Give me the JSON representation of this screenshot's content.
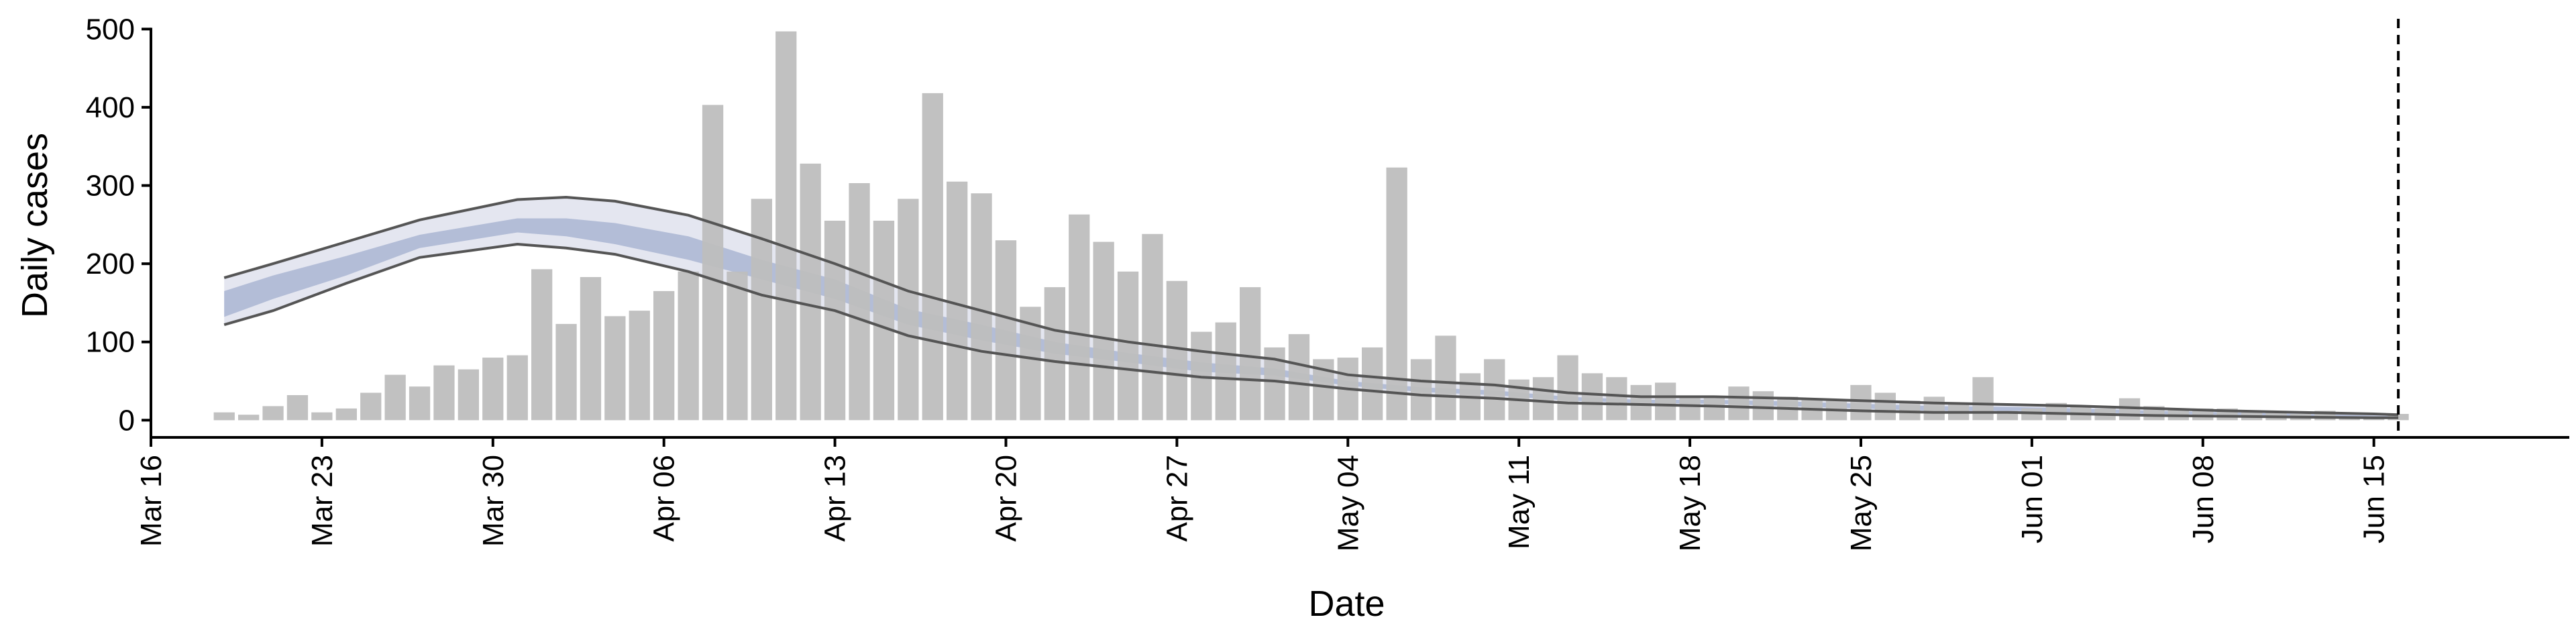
{
  "chart_data": {
    "type": "bar",
    "xlabel": "Date",
    "ylabel": "Daily cases",
    "ylim": [
      -22,
      520
    ],
    "xlim": [
      "2020-03-16",
      "2020-06-23"
    ],
    "y_ticks": [
      0,
      100,
      200,
      300,
      400,
      500
    ],
    "x_ticks": [
      {
        "date": "2020-03-16",
        "label": "Mar 16"
      },
      {
        "date": "2020-03-23",
        "label": "Mar 23"
      },
      {
        "date": "2020-03-30",
        "label": "Mar 30"
      },
      {
        "date": "2020-04-06",
        "label": "Apr 06"
      },
      {
        "date": "2020-04-13",
        "label": "Apr 13"
      },
      {
        "date": "2020-04-20",
        "label": "Apr 20"
      },
      {
        "date": "2020-04-27",
        "label": "Apr 27"
      },
      {
        "date": "2020-05-04",
        "label": "May 04"
      },
      {
        "date": "2020-05-11",
        "label": "May 11"
      },
      {
        "date": "2020-05-18",
        "label": "May 18"
      },
      {
        "date": "2020-05-25",
        "label": "May 25"
      },
      {
        "date": "2020-06-01",
        "label": "Jun 01"
      },
      {
        "date": "2020-06-08",
        "label": "Jun 08"
      },
      {
        "date": "2020-06-15",
        "label": "Jun 15"
      }
    ],
    "vline_date": "2020-06-16",
    "grid": false,
    "legend": "none",
    "colors": {
      "bars": "#bebebe",
      "outer_band": "#e4e6f0",
      "inner_band": "#b3bdd7",
      "bound_lines": "#555555",
      "vline": "#000000"
    },
    "bars": {
      "dates": [
        "2020-03-19",
        "2020-03-20",
        "2020-03-21",
        "2020-03-22",
        "2020-03-23",
        "2020-03-24",
        "2020-03-25",
        "2020-03-26",
        "2020-03-27",
        "2020-03-28",
        "2020-03-29",
        "2020-03-30",
        "2020-03-31",
        "2020-04-01",
        "2020-04-02",
        "2020-04-03",
        "2020-04-04",
        "2020-04-05",
        "2020-04-06",
        "2020-04-07",
        "2020-04-08",
        "2020-04-09",
        "2020-04-10",
        "2020-04-11",
        "2020-04-12",
        "2020-04-13",
        "2020-04-14",
        "2020-04-15",
        "2020-04-16",
        "2020-04-17",
        "2020-04-18",
        "2020-04-19",
        "2020-04-20",
        "2020-04-21",
        "2020-04-22",
        "2020-04-23",
        "2020-04-24",
        "2020-04-25",
        "2020-04-26",
        "2020-04-27",
        "2020-04-28",
        "2020-04-29",
        "2020-04-30",
        "2020-05-01",
        "2020-05-02",
        "2020-05-03",
        "2020-05-04",
        "2020-05-05",
        "2020-05-06",
        "2020-05-07",
        "2020-05-08",
        "2020-05-09",
        "2020-05-10",
        "2020-05-11",
        "2020-05-12",
        "2020-05-13",
        "2020-05-14",
        "2020-05-15",
        "2020-05-16",
        "2020-05-17",
        "2020-05-18",
        "2020-05-19",
        "2020-05-20",
        "2020-05-21",
        "2020-05-22",
        "2020-05-23",
        "2020-05-24",
        "2020-05-25",
        "2020-05-26",
        "2020-05-27",
        "2020-05-28",
        "2020-05-29",
        "2020-05-30",
        "2020-05-31",
        "2020-06-01",
        "2020-06-02",
        "2020-06-03",
        "2020-06-04",
        "2020-06-05",
        "2020-06-06",
        "2020-06-07",
        "2020-06-08",
        "2020-06-09",
        "2020-06-10",
        "2020-06-11",
        "2020-06-12",
        "2020-06-13",
        "2020-06-14",
        "2020-06-15",
        "2020-06-16"
      ],
      "values": [
        10,
        7,
        18,
        32,
        10,
        15,
        35,
        58,
        43,
        70,
        65,
        80,
        83,
        193,
        123,
        183,
        133,
        140,
        165,
        190,
        403,
        190,
        283,
        497,
        328,
        255,
        303,
        255,
        283,
        418,
        305,
        290,
        230,
        145,
        170,
        263,
        228,
        190,
        238,
        178,
        113,
        125,
        170,
        93,
        110,
        78,
        80,
        93,
        323,
        78,
        108,
        60,
        78,
        52,
        55,
        83,
        60,
        55,
        45,
        48,
        30,
        30,
        43,
        37,
        30,
        28,
        25,
        45,
        35,
        25,
        30,
        20,
        55,
        12,
        15,
        22,
        18,
        15,
        28,
        18,
        15,
        15,
        15,
        12,
        12,
        8,
        12,
        5,
        5,
        8
      ]
    },
    "band": {
      "dates": [
        "2020-03-19",
        "2020-03-21",
        "2020-03-24",
        "2020-03-27",
        "2020-03-31",
        "2020-04-02",
        "2020-04-04",
        "2020-04-07",
        "2020-04-10",
        "2020-04-13",
        "2020-04-16",
        "2020-04-19",
        "2020-04-22",
        "2020-04-25",
        "2020-04-28",
        "2020-05-01",
        "2020-05-04",
        "2020-05-07",
        "2020-05-10",
        "2020-05-13",
        "2020-05-16",
        "2020-05-19",
        "2020-05-22",
        "2020-05-25",
        "2020-05-28",
        "2020-05-31",
        "2020-06-03",
        "2020-06-06",
        "2020-06-09",
        "2020-06-12",
        "2020-06-15",
        "2020-06-16"
      ],
      "upper": [
        182,
        200,
        228,
        256,
        282,
        285,
        280,
        262,
        232,
        200,
        165,
        140,
        115,
        100,
        88,
        78,
        58,
        50,
        45,
        35,
        30,
        30,
        28,
        25,
        22,
        20,
        18,
        15,
        12,
        10,
        8,
        7
      ],
      "lower": [
        122,
        140,
        175,
        208,
        225,
        220,
        212,
        190,
        160,
        140,
        108,
        88,
        75,
        65,
        55,
        50,
        40,
        32,
        28,
        22,
        20,
        18,
        15,
        12,
        10,
        10,
        8,
        6,
        5,
        4,
        3,
        3
      ],
      "inner_upper": [
        165,
        185,
        210,
        237,
        258,
        258,
        252,
        235,
        205,
        180,
        142,
        122,
        100,
        86,
        74,
        66,
        50,
        42,
        38,
        30,
        26,
        26,
        24,
        21,
        18,
        17,
        15,
        12,
        10,
        8,
        6,
        5
      ],
      "inner_lower": [
        132,
        155,
        185,
        220,
        240,
        235,
        225,
        205,
        180,
        155,
        122,
        102,
        85,
        74,
        62,
        57,
        44,
        36,
        32,
        25,
        22,
        21,
        18,
        15,
        12,
        12,
        10,
        8,
        7,
        5,
        4,
        4
      ]
    }
  }
}
